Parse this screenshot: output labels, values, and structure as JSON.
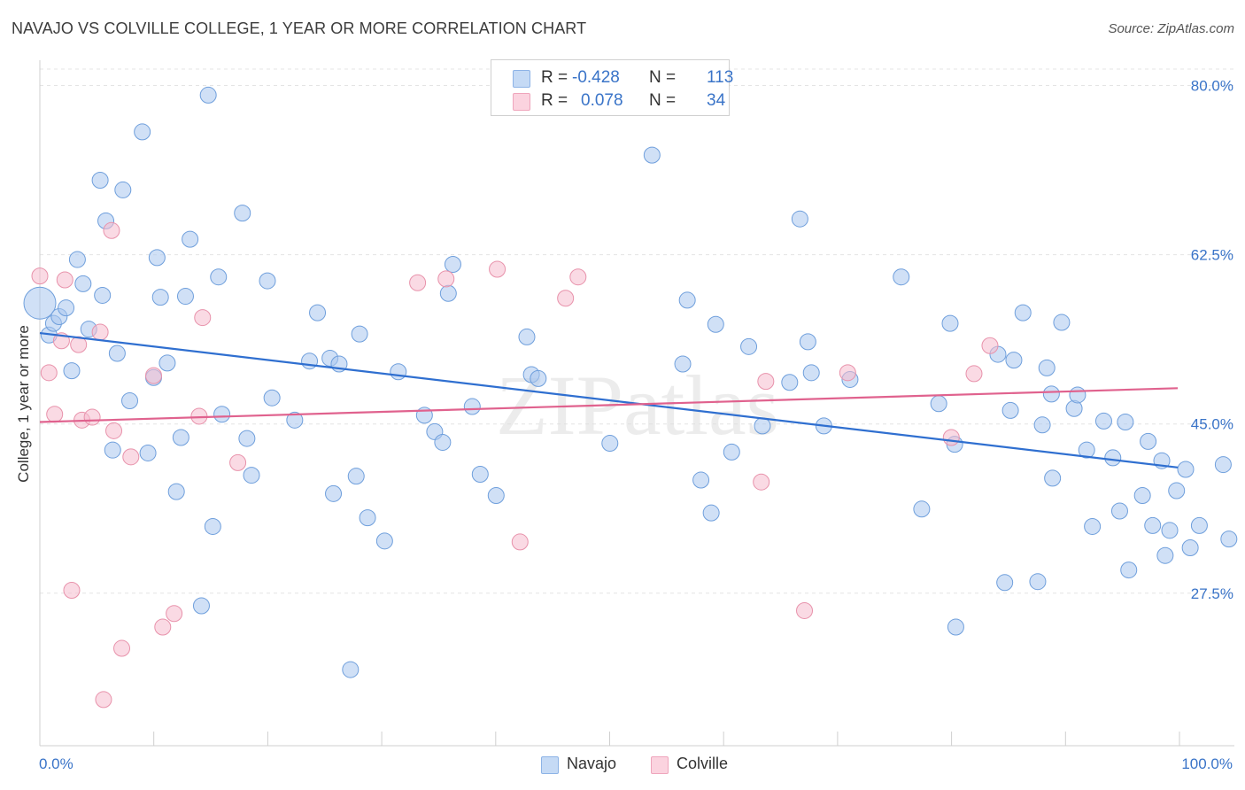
{
  "title": "NAVAJO VS COLVILLE COLLEGE, 1 YEAR OR MORE CORRELATION CHART",
  "source": "Source: ZipAtlas.com",
  "watermark": "ZIPatlas",
  "legend": {
    "rows": [
      {
        "r_label": "R =",
        "r_value": "-0.428",
        "n_label": "N =",
        "n_value": "113",
        "color": "#a9c7ef"
      },
      {
        "r_label": "R =",
        "r_value": "0.078",
        "n_label": "N =",
        "n_value": "34",
        "color": "#f6bccd"
      }
    ]
  },
  "bottom_legend": [
    {
      "label": "Navajo",
      "color": "#a9c7ef"
    },
    {
      "label": "Colville",
      "color": "#f6bccd"
    }
  ],
  "chart_data": {
    "type": "scatter",
    "title": "NAVAJO VS COLVILLE COLLEGE, 1 YEAR OR MORE CORRELATION CHART",
    "xlabel": "",
    "ylabel": "College, 1 year or more",
    "xlim": [
      0,
      100
    ],
    "ylim": [
      12,
      82
    ],
    "x_tick_labels": [
      "0.0%",
      "100.0%"
    ],
    "y_ticks": [
      27.5,
      45.0,
      62.5,
      80.0
    ],
    "y_tick_labels": [
      "27.5%",
      "45.0%",
      "62.5%",
      "80.0%"
    ],
    "grid": true,
    "legend_position": "top-center",
    "series": [
      {
        "name": "Navajo",
        "color": "#a9c7ef",
        "stroke": "#6f9fdc",
        "trend": {
          "x": [
            0,
            100
          ],
          "y": [
            54.4,
            40.5
          ],
          "color": "#2f6fd0"
        },
        "points": [
          [
            0.0,
            57.5
          ],
          [
            0.8,
            54.2
          ],
          [
            1.2,
            55.4
          ],
          [
            1.7,
            56.1
          ],
          [
            2.3,
            57.0
          ],
          [
            2.8,
            50.5
          ],
          [
            3.3,
            62.0
          ],
          [
            3.8,
            59.5
          ],
          [
            4.3,
            54.8
          ],
          [
            5.3,
            70.2
          ],
          [
            5.5,
            58.3
          ],
          [
            5.8,
            66.0
          ],
          [
            6.4,
            42.3
          ],
          [
            6.8,
            52.3
          ],
          [
            7.3,
            69.2
          ],
          [
            7.9,
            47.4
          ],
          [
            9.0,
            75.2
          ],
          [
            9.5,
            42.0
          ],
          [
            10.0,
            49.8
          ],
          [
            10.3,
            62.2
          ],
          [
            10.6,
            58.1
          ],
          [
            11.2,
            51.3
          ],
          [
            12.0,
            38.0
          ],
          [
            12.4,
            43.6
          ],
          [
            12.8,
            58.2
          ],
          [
            13.2,
            64.1
          ],
          [
            14.2,
            26.2
          ],
          [
            15.2,
            34.4
          ],
          [
            14.8,
            79.0
          ],
          [
            15.7,
            60.2
          ],
          [
            16.0,
            46.0
          ],
          [
            17.8,
            66.8
          ],
          [
            18.2,
            43.5
          ],
          [
            18.6,
            39.7
          ],
          [
            20.0,
            59.8
          ],
          [
            20.4,
            47.7
          ],
          [
            22.4,
            45.4
          ],
          [
            23.7,
            51.5
          ],
          [
            24.4,
            56.5
          ],
          [
            25.5,
            51.8
          ],
          [
            25.8,
            37.8
          ],
          [
            26.3,
            51.2
          ],
          [
            27.3,
            19.6
          ],
          [
            27.8,
            39.6
          ],
          [
            28.1,
            54.3
          ],
          [
            28.8,
            35.3
          ],
          [
            30.3,
            32.9
          ],
          [
            31.5,
            50.4
          ],
          [
            33.8,
            45.9
          ],
          [
            34.7,
            44.2
          ],
          [
            35.4,
            43.1
          ],
          [
            35.9,
            58.5
          ],
          [
            36.3,
            61.5
          ],
          [
            38.0,
            46.8
          ],
          [
            38.7,
            39.8
          ],
          [
            40.1,
            37.6
          ],
          [
            42.8,
            54.0
          ],
          [
            43.2,
            50.1
          ],
          [
            43.8,
            49.7
          ],
          [
            50.1,
            43.0
          ],
          [
            53.8,
            72.8
          ],
          [
            56.5,
            51.2
          ],
          [
            56.9,
            57.8
          ],
          [
            58.1,
            39.2
          ],
          [
            59.0,
            35.8
          ],
          [
            59.4,
            55.3
          ],
          [
            60.8,
            42.1
          ],
          [
            62.3,
            53.0
          ],
          [
            63.5,
            44.8
          ],
          [
            65.9,
            49.3
          ],
          [
            66.8,
            66.2
          ],
          [
            67.5,
            53.5
          ],
          [
            67.8,
            50.3
          ],
          [
            68.9,
            44.8
          ],
          [
            71.2,
            49.6
          ],
          [
            75.7,
            60.2
          ],
          [
            77.5,
            36.2
          ],
          [
            79.0,
            47.1
          ],
          [
            80.0,
            55.4
          ],
          [
            80.5,
            24.0
          ],
          [
            80.4,
            42.9
          ],
          [
            84.2,
            52.2
          ],
          [
            84.8,
            28.6
          ],
          [
            85.3,
            46.4
          ],
          [
            85.6,
            51.6
          ],
          [
            86.4,
            56.5
          ],
          [
            87.7,
            28.7
          ],
          [
            88.1,
            44.9
          ],
          [
            88.5,
            50.8
          ],
          [
            89.0,
            39.4
          ],
          [
            88.9,
            48.1
          ],
          [
            89.8,
            55.5
          ],
          [
            90.9,
            46.6
          ],
          [
            91.2,
            48.0
          ],
          [
            92.0,
            42.3
          ],
          [
            92.5,
            34.4
          ],
          [
            93.5,
            45.3
          ],
          [
            94.3,
            41.5
          ],
          [
            94.9,
            36.0
          ],
          [
            95.4,
            45.2
          ],
          [
            95.7,
            29.9
          ],
          [
            96.9,
            37.6
          ],
          [
            97.4,
            43.2
          ],
          [
            97.8,
            34.5
          ],
          [
            98.6,
            41.2
          ],
          [
            98.9,
            31.4
          ],
          [
            99.3,
            34.0
          ],
          [
            99.9,
            38.1
          ],
          [
            100.7,
            40.3
          ],
          [
            101.1,
            32.2
          ],
          [
            101.9,
            34.5
          ],
          [
            104.0,
            40.8
          ],
          [
            104.5,
            33.1
          ]
        ]
      },
      {
        "name": "Colville",
        "color": "#f6bccd",
        "stroke": "#e892ab",
        "trend": {
          "x": [
            0,
            100
          ],
          "y": [
            45.2,
            48.7
          ],
          "color": "#e0628e"
        },
        "points": [
          [
            0.0,
            60.3
          ],
          [
            0.8,
            50.3
          ],
          [
            1.3,
            46.0
          ],
          [
            1.9,
            53.6
          ],
          [
            2.2,
            59.9
          ],
          [
            2.8,
            27.8
          ],
          [
            3.4,
            53.2
          ],
          [
            3.7,
            45.4
          ],
          [
            4.6,
            45.7
          ],
          [
            5.3,
            54.5
          ],
          [
            5.6,
            16.5
          ],
          [
            6.3,
            65.0
          ],
          [
            6.5,
            44.3
          ],
          [
            7.2,
            21.8
          ],
          [
            8.0,
            41.6
          ],
          [
            10.0,
            50.0
          ],
          [
            10.8,
            24.0
          ],
          [
            11.8,
            25.4
          ],
          [
            14.0,
            45.8
          ],
          [
            14.3,
            56.0
          ],
          [
            17.4,
            41.0
          ],
          [
            33.2,
            59.6
          ],
          [
            35.7,
            60.0
          ],
          [
            40.2,
            61.0
          ],
          [
            42.2,
            32.8
          ],
          [
            46.2,
            58.0
          ],
          [
            47.3,
            60.2
          ],
          [
            63.8,
            49.4
          ],
          [
            63.4,
            39.0
          ],
          [
            67.2,
            25.7
          ],
          [
            71.0,
            50.3
          ],
          [
            80.1,
            43.6
          ],
          [
            82.1,
            50.2
          ],
          [
            83.5,
            53.1
          ]
        ]
      }
    ]
  }
}
